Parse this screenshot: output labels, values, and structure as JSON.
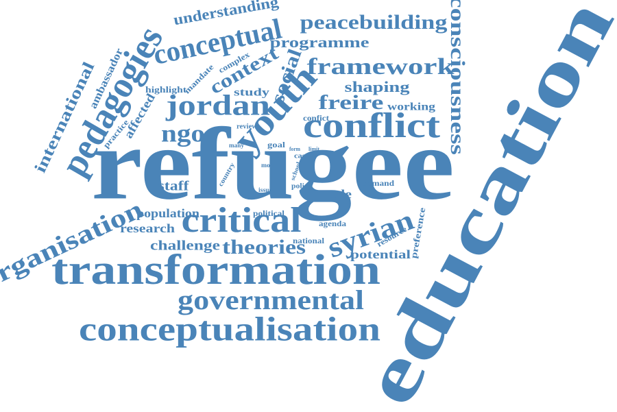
{
  "words": [
    "refugee",
    "education",
    "transformation",
    "conceptualisation",
    "governmental",
    "critical",
    "conflict",
    "youth",
    "jordan",
    "ngos",
    "pedagogies",
    "conceptual",
    "context",
    "social",
    "understanding",
    "peacebuilding",
    "programme",
    "framework",
    "shaping",
    "freire",
    "working",
    "consciousness",
    "study",
    "international",
    "ambassador",
    "highlight",
    "mandate",
    "complex",
    "affected",
    "practice",
    "organisation",
    "population",
    "research",
    "challenge",
    "theories",
    "staff",
    "syrian",
    "potential",
    "preference",
    "resource",
    "national",
    "political",
    "agenda",
    "role",
    "demand",
    "policy",
    "issue",
    "school",
    "case",
    "limit",
    "form",
    "goal",
    "most",
    "country",
    "many",
    "review",
    "confict"
  ]
}
